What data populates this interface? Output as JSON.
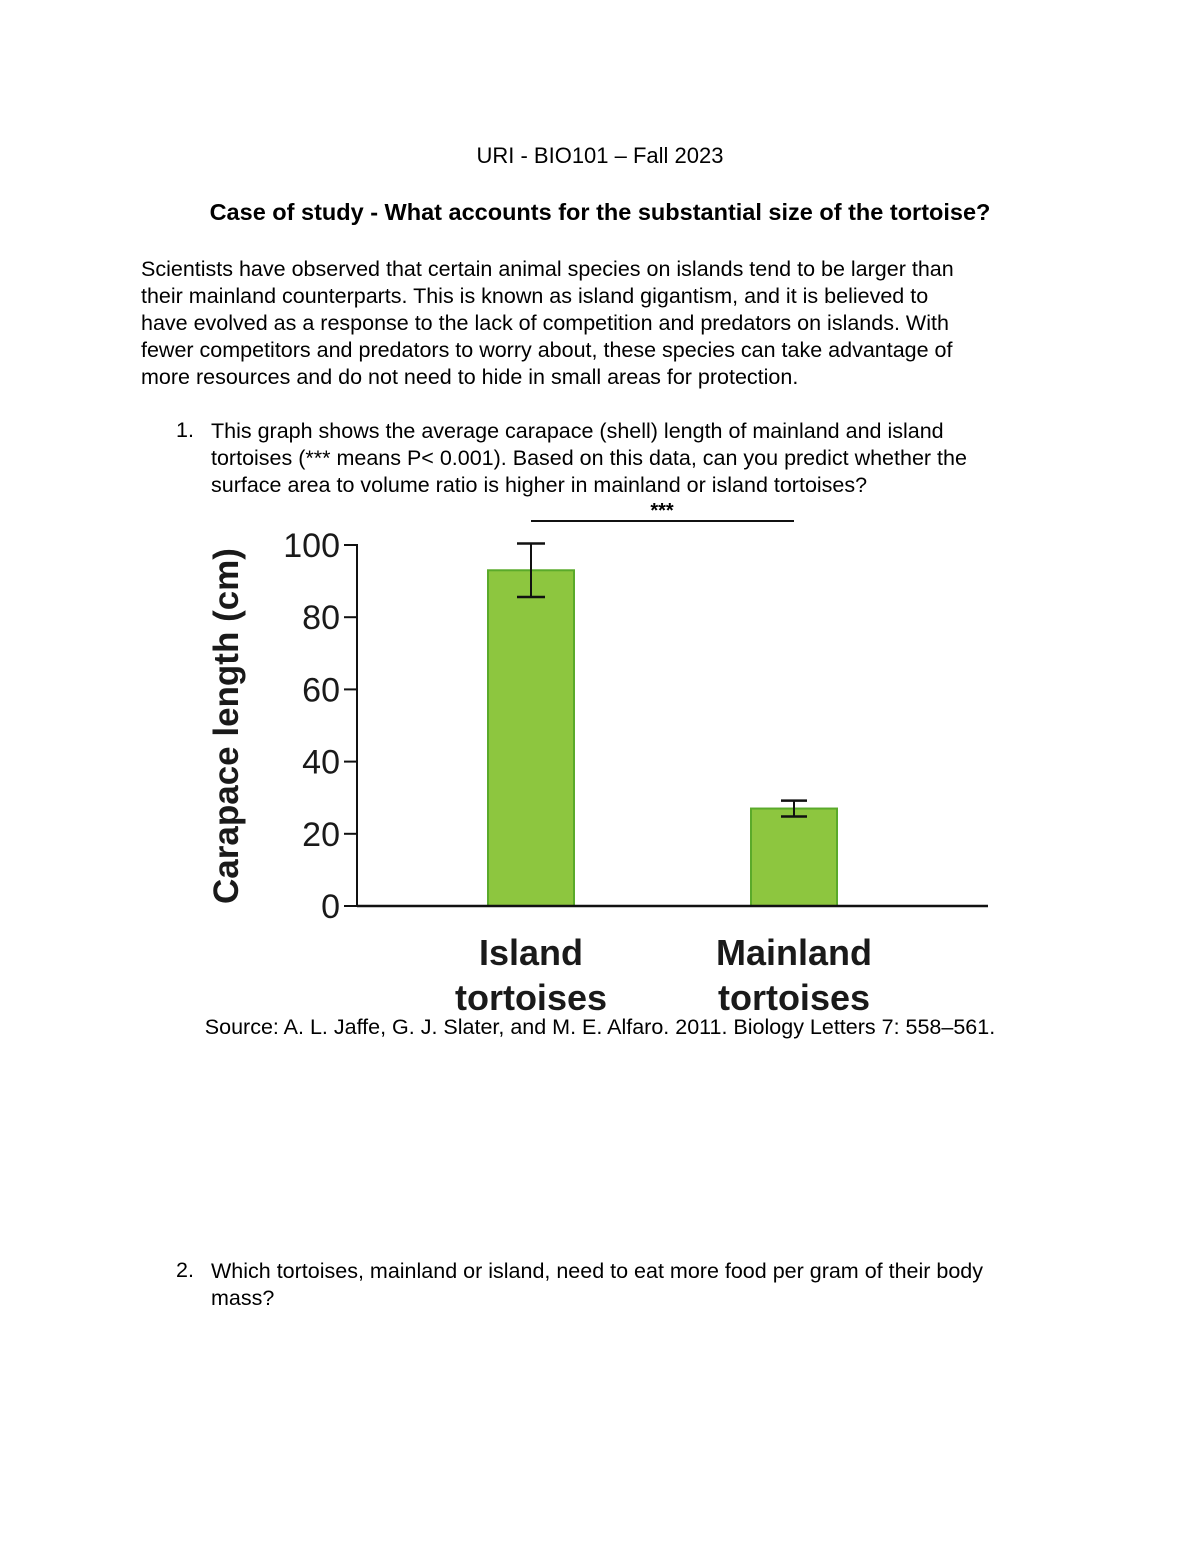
{
  "header": "URI - BIO101 – Fall 2023",
  "title": "Case of study - What accounts for the substantial size of the tortoise?",
  "intro_lines": [
    "Scientists have observed that certain animal species on islands tend to be larger than",
    "their mainland counterparts. This is known as island gigantism, and it is believed to",
    "have evolved as a response to the lack of competition and predators on islands. With",
    "fewer competitors and predators to worry about, these species can take advantage of",
    "more resources and do not need to hide in small areas for protection."
  ],
  "questions": [
    {
      "number": "1.",
      "lines": [
        "This graph shows the average carapace (shell) length of mainland and island",
        "tortoises (*** means P< 0.001). Based on this data, can you predict whether the",
        "surface area to volume ratio is higher in mainland or island tortoises?"
      ]
    },
    {
      "number": "2.",
      "lines": [
        "Which tortoises, mainland or island, need to eat more food per gram of their body",
        "mass?"
      ]
    }
  ],
  "source": "Source: A. L. Jaffe, G. J. Slater, and M. E. Alfaro. 2011. Biology Letters 7: 558–561.",
  "chart_data": {
    "type": "bar",
    "categories": [
      "Island tortoises",
      "Mainland tortoises"
    ],
    "category_lines": [
      [
        "Island",
        "tortoises"
      ],
      [
        "Mainland",
        "tortoises"
      ]
    ],
    "values": [
      93,
      27
    ],
    "error": [
      7.4,
      2.2
    ],
    "ylabel": "Carapace length (cm)",
    "ylim": [
      0,
      100
    ],
    "yticks": [
      "0",
      "20",
      "40",
      "60",
      "80",
      "100"
    ],
    "significance": "***",
    "grid": false,
    "bar_color": "#8dc63f",
    "bar_edge_color": "#5aaa2a"
  }
}
